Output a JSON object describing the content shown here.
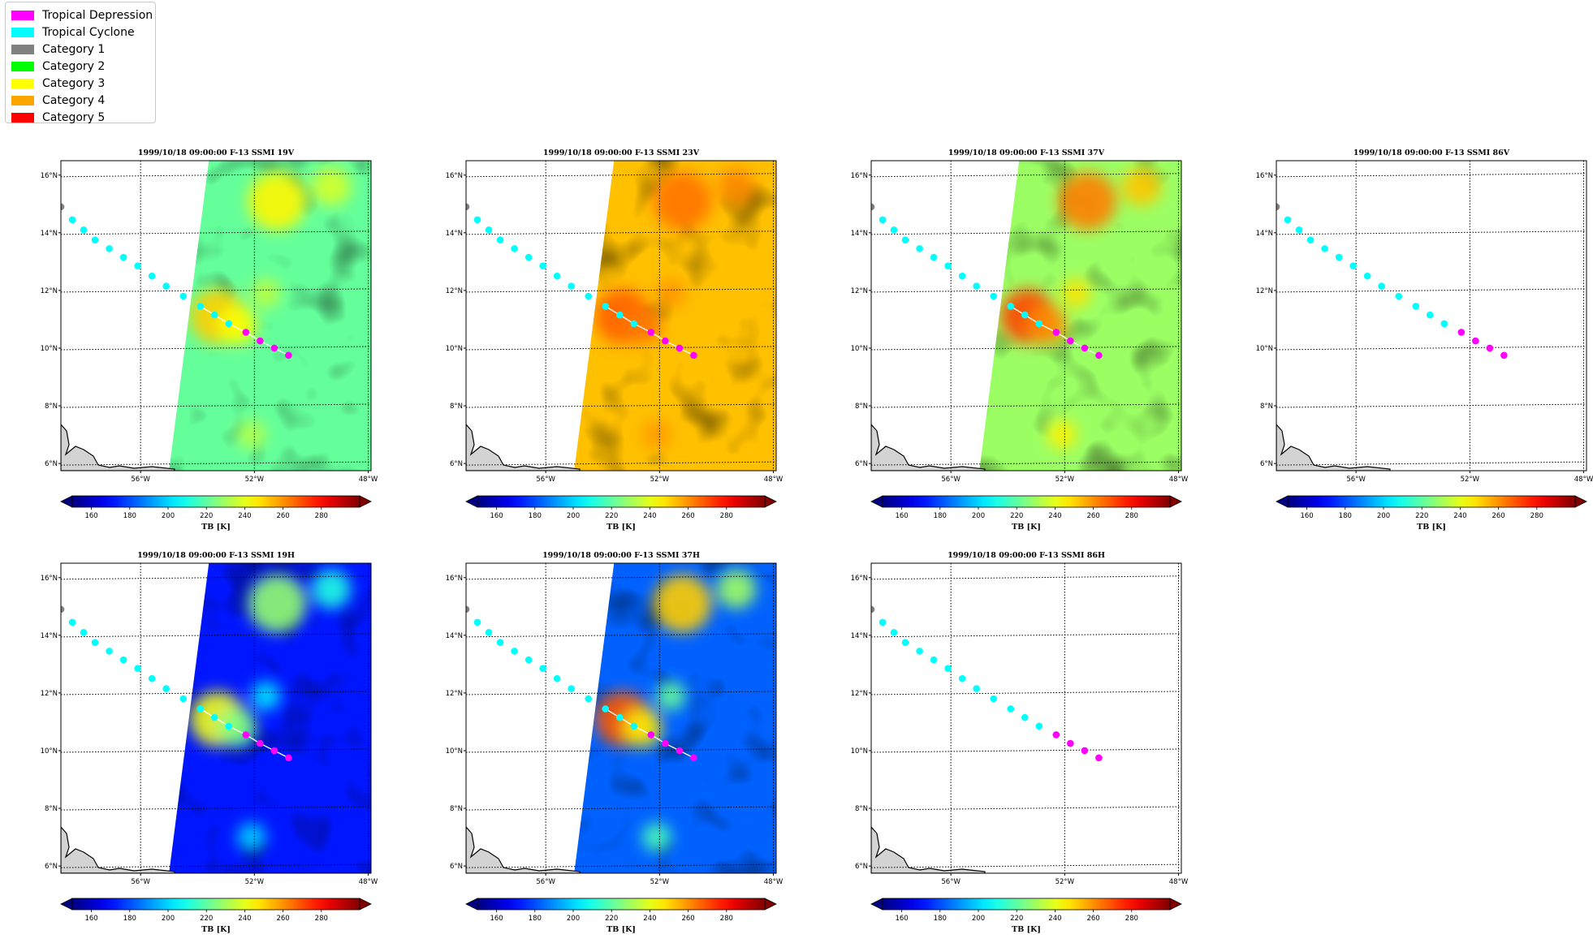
{
  "legend": {
    "items": [
      {
        "label": "Tropical Depression",
        "color": "#ff00ff"
      },
      {
        "label": "Tropical Cyclone",
        "color": "#00ffff"
      },
      {
        "label": "Category 1",
        "color": "#808080"
      },
      {
        "label": "Category 2",
        "color": "#00ff00"
      },
      {
        "label": "Category 3",
        "color": "#ffff00"
      },
      {
        "label": "Category 4",
        "color": "#ffa500"
      },
      {
        "label": "Category 5",
        "color": "#ff0000"
      }
    ]
  },
  "chart_data": {
    "type": "scatter",
    "map": {
      "lon_range": [
        -58.8,
        -47.9
      ],
      "lat_range": [
        5.75,
        16.5
      ],
      "lon_ticks": [
        -56,
        -52,
        -48
      ],
      "lon_tick_labels": [
        "56°W",
        "52°W",
        "48°W"
      ],
      "lat_ticks": [
        6,
        8,
        10,
        12,
        14,
        16
      ],
      "lat_tick_labels": [
        "6°N",
        "8°N",
        "10°N",
        "12°N",
        "14°N",
        "16°N"
      ],
      "grid": true
    },
    "colorbar": {
      "range": [
        150,
        300
      ],
      "ticks": [
        160,
        180,
        200,
        220,
        240,
        260,
        280
      ],
      "label": "TB [K]",
      "cmap": "jet",
      "extend": "both"
    },
    "track": [
      {
        "lon": -58.8,
        "lat": 14.9,
        "cat": "Category 1"
      },
      {
        "lon": -58.4,
        "lat": 14.45,
        "cat": "Tropical Cyclone"
      },
      {
        "lon": -58.0,
        "lat": 14.1,
        "cat": "Tropical Cyclone"
      },
      {
        "lon": -57.6,
        "lat": 13.75,
        "cat": "Tropical Cyclone"
      },
      {
        "lon": -57.1,
        "lat": 13.45,
        "cat": "Tropical Cyclone"
      },
      {
        "lon": -56.6,
        "lat": 13.15,
        "cat": "Tropical Cyclone"
      },
      {
        "lon": -56.1,
        "lat": 12.85,
        "cat": "Tropical Cyclone"
      },
      {
        "lon": -55.6,
        "lat": 12.5,
        "cat": "Tropical Cyclone"
      },
      {
        "lon": -55.1,
        "lat": 12.15,
        "cat": "Tropical Cyclone"
      },
      {
        "lon": -54.5,
        "lat": 11.8,
        "cat": "Tropical Cyclone"
      },
      {
        "lon": -53.9,
        "lat": 11.45,
        "cat": "Tropical Cyclone"
      },
      {
        "lon": -53.4,
        "lat": 11.15,
        "cat": "Tropical Cyclone"
      },
      {
        "lon": -52.9,
        "lat": 10.85,
        "cat": "Tropical Cyclone"
      },
      {
        "lon": -52.3,
        "lat": 10.55,
        "cat": "Tropical Depression"
      },
      {
        "lon": -51.8,
        "lat": 10.25,
        "cat": "Tropical Depression"
      },
      {
        "lon": -51.3,
        "lat": 10.0,
        "cat": "Tropical Depression"
      },
      {
        "lon": -50.8,
        "lat": 9.75,
        "cat": "Tropical Depression"
      }
    ],
    "panels": [
      {
        "title": "1999/10/18 09:00:00  F-13 SSMI 19V",
        "swath": true,
        "base_tb": 221,
        "swath_lon_top": -53.6,
        "swath_lon_bottom": -55.0
      },
      {
        "title": "1999/10/18 09:00:00  F-13 SSMI 23V",
        "swath": true,
        "base_tb": 253,
        "swath_lon_top": -53.6,
        "swath_lon_bottom": -55.0
      },
      {
        "title": "1999/10/18 09:00:00  F-13 SSMI 37V",
        "swath": true,
        "base_tb": 229,
        "swath_lon_top": -53.6,
        "swath_lon_bottom": -55.0
      },
      {
        "title": "1999/10/18 09:00:00  F-13 SSMI 86V",
        "swath": false
      },
      {
        "title": "1999/10/18 09:00:00  F-13 SSMI 19H",
        "swath": true,
        "base_tb": 172,
        "swath_lon_top": -53.6,
        "swath_lon_bottom": -55.0
      },
      {
        "title": "1999/10/18 09:00:00  F-13 SSMI 37H",
        "swath": true,
        "base_tb": 183,
        "swath_lon_top": -53.6,
        "swath_lon_bottom": -55.0
      },
      {
        "title": "1999/10/18 09:00:00  F-13 SSMI 86H",
        "swath": false
      }
    ]
  }
}
